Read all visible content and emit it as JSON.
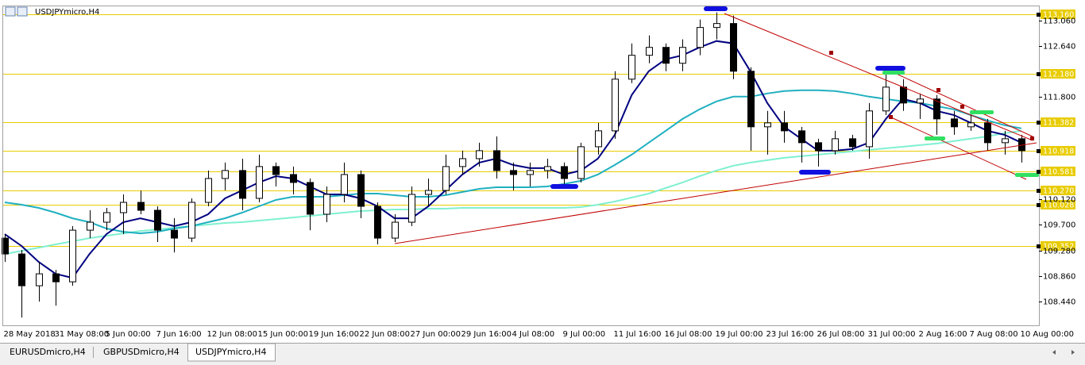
{
  "chart_data": {
    "type": "candlestick",
    "title": "USDJPYmicro,H4",
    "categories": [
      "28 May 2018",
      null,
      null,
      "31 May 08:00",
      null,
      null,
      "5 Jun 00:00",
      null,
      null,
      "7 Jun 16:00",
      null,
      null,
      "12 Jun 08:00",
      null,
      null,
      "15 Jun 00:00",
      null,
      null,
      "19 Jun 16:00",
      null,
      null,
      "22 Jun 08:00",
      null,
      null,
      "27 Jun 00:00",
      null,
      null,
      "29 Jun 16:00",
      null,
      null,
      "4 Jul 08:00",
      null,
      null,
      "9 Jul 00:00",
      null,
      null,
      "11 Jul 16:00",
      null,
      null,
      "16 Jul 08:00",
      null,
      null,
      "19 Jul 00:00",
      null,
      null,
      "23 Jul 16:00",
      null,
      null,
      "26 Jul 08:00",
      null,
      null,
      "31 Jul 00:00",
      null,
      null,
      "2 Aug 16:00",
      null,
      null,
      "7 Aug 08:00",
      null,
      null,
      "10 Aug 00:00"
    ],
    "open": [
      109.483,
      109.222,
      108.7,
      108.896,
      108.765,
      109.613,
      109.744,
      109.901,
      110.07,
      109.94,
      109.613,
      109.483,
      110.07,
      110.462,
      110.593,
      110.136,
      110.658,
      110.527,
      110.397,
      109.875,
      110.201,
      110.527,
      110.005,
      109.483,
      109.744,
      110.201,
      110.266,
      110.658,
      110.788,
      110.919,
      110.593,
      110.527,
      110.593,
      110.658,
      110.462,
      110.984,
      111.245,
      112.094,
      112.486,
      112.616,
      112.355,
      112.616,
      112.943,
      113.008,
      112.224,
      111.311,
      111.376,
      111.245,
      111.05,
      110.919,
      111.115,
      110.984,
      111.572,
      111.963,
      111.702,
      111.768,
      111.441,
      111.311,
      111.376,
      111.05,
      111.115
    ],
    "high": [
      109.548,
      109.287,
      109.091,
      108.961,
      109.679,
      109.94,
      109.979,
      110.201,
      110.266,
      110.005,
      109.809,
      110.136,
      110.593,
      110.723,
      110.788,
      110.854,
      110.723,
      110.658,
      110.462,
      110.331,
      110.723,
      110.593,
      110.07,
      109.875,
      110.331,
      110.462,
      110.854,
      110.919,
      111.05,
      111.154,
      110.723,
      110.723,
      110.788,
      110.723,
      111.05,
      111.376,
      112.224,
      112.681,
      112.812,
      112.681,
      112.747,
      113.073,
      113.191,
      113.138,
      112.29,
      111.572,
      111.572,
      111.311,
      111.115,
      111.245,
      111.18,
      111.702,
      112.198,
      112.094,
      111.859,
      111.833,
      111.572,
      111.506,
      111.441,
      111.245,
      111.18
    ],
    "low": [
      109.091,
      108.177,
      108.439,
      108.373,
      108.7,
      109.483,
      109.613,
      109.548,
      109.875,
      109.418,
      109.248,
      109.418,
      110.005,
      110.266,
      109.94,
      110.07,
      110.331,
      110.201,
      109.613,
      109.744,
      110.07,
      109.809,
      109.379,
      109.418,
      109.679,
      110.005,
      110.201,
      110.527,
      110.658,
      110.462,
      110.266,
      110.331,
      110.462,
      110.371,
      110.397,
      110.854,
      111.115,
      112.029,
      112.355,
      112.224,
      112.224,
      112.486,
      112.747,
      112.094,
      110.919,
      110.854,
      111.05,
      110.723,
      110.658,
      110.854,
      110.919,
      110.788,
      111.506,
      111.572,
      111.441,
      111.18,
      111.18,
      111.245,
      110.919,
      110.854,
      110.723
    ],
    "close": [
      109.222,
      108.7,
      108.896,
      108.765,
      109.613,
      109.744,
      109.901,
      110.07,
      109.94,
      109.613,
      109.483,
      110.07,
      110.462,
      110.593,
      110.136,
      110.658,
      110.527,
      110.397,
      109.875,
      110.201,
      110.527,
      110.005,
      109.483,
      109.744,
      110.201,
      110.266,
      110.658,
      110.788,
      110.919,
      110.593,
      110.527,
      110.593,
      110.658,
      110.462,
      110.984,
      111.245,
      112.094,
      112.486,
      112.616,
      112.355,
      112.616,
      112.943,
      113.008,
      112.224,
      111.311,
      111.376,
      111.245,
      111.05,
      110.919,
      111.115,
      110.984,
      111.572,
      111.963,
      111.702,
      111.768,
      111.441,
      111.311,
      111.376,
      111.05,
      111.115,
      110.919
    ],
    "up_color": "#ffffff",
    "down_color": "#000000",
    "moving_averages": [
      {
        "color": "#80f0d0",
        "values": [
          109.222,
          109.274,
          109.326,
          109.379,
          109.431,
          109.483,
          109.522,
          109.561,
          109.6,
          109.626,
          109.653,
          109.679,
          109.705,
          109.731,
          109.744,
          109.77,
          109.796,
          109.822,
          109.848,
          109.875,
          109.901,
          109.927,
          109.94,
          109.953,
          109.953,
          109.966,
          109.966,
          109.979,
          109.979,
          109.979,
          109.979,
          109.979,
          109.979,
          109.979,
          109.992,
          110.031,
          110.083,
          110.149,
          110.214,
          110.305,
          110.397,
          110.501,
          110.593,
          110.671,
          110.723,
          110.762,
          110.801,
          110.828,
          110.854,
          110.88,
          110.906,
          110.932,
          110.958,
          110.984,
          111.01,
          111.036,
          111.075,
          111.115,
          111.154,
          111.206,
          111.245
        ]
      },
      {
        "color": "#20b0c0",
        "values": [
          110.07,
          110.031,
          109.979,
          109.901,
          109.809,
          109.744,
          109.64,
          109.587,
          109.561,
          109.587,
          109.64,
          109.679,
          109.744,
          109.809,
          109.901,
          110.005,
          110.11,
          110.162,
          110.162,
          110.162,
          110.188,
          110.214,
          110.214,
          110.188,
          110.162,
          110.162,
          110.188,
          110.24,
          110.292,
          110.318,
          110.318,
          110.318,
          110.331,
          110.371,
          110.423,
          110.527,
          110.684,
          110.854,
          111.05,
          111.245,
          111.441,
          111.598,
          111.728,
          111.807,
          111.807,
          111.859,
          111.898,
          111.911,
          111.911,
          111.898,
          111.859,
          111.807,
          111.768,
          111.728,
          111.702,
          111.65,
          111.598,
          111.506,
          111.415,
          111.337,
          111.285
        ]
      },
      {
        "color": "#000080",
        "values": [
          109.548,
          109.352,
          109.091,
          108.896,
          108.83,
          109.222,
          109.548,
          109.744,
          109.809,
          109.744,
          109.679,
          109.744,
          109.875,
          110.136,
          110.266,
          110.397,
          110.501,
          110.462,
          110.331,
          110.201,
          110.201,
          110.136,
          110.005,
          109.809,
          109.809,
          110.005,
          110.266,
          110.527,
          110.723,
          110.788,
          110.684,
          110.632,
          110.632,
          110.527,
          110.593,
          110.788,
          111.18,
          111.833,
          112.224,
          112.42,
          112.486,
          112.616,
          112.721,
          112.681,
          112.224,
          111.702,
          111.311,
          111.115,
          110.919,
          110.919,
          110.945,
          111.05,
          111.441,
          111.768,
          111.702,
          111.572,
          111.506,
          111.376,
          111.245,
          111.18,
          111.05
        ]
      }
    ],
    "ylim": [
      108.05,
      113.29
    ],
    "yticks": [
      {
        "value": 113.06,
        "label": "113.060"
      },
      {
        "value": 112.64,
        "label": "112.640"
      },
      {
        "value": 111.8,
        "label": "111.800"
      },
      {
        "value": 110.12,
        "label": "110.120"
      },
      {
        "value": 109.7,
        "label": "109.700"
      },
      {
        "value": 109.28,
        "label": "109.280"
      },
      {
        "value": 108.86,
        "label": "108.860"
      },
      {
        "value": 108.44,
        "label": "108.440"
      }
    ],
    "levels": [
      {
        "value": 113.16,
        "label": "113.160"
      },
      {
        "value": 112.18,
        "label": "112.180"
      },
      {
        "value": 111.382,
        "label": "111.382"
      },
      {
        "value": 110.918,
        "label": "110.918"
      },
      {
        "value": 110.581,
        "label": "110.581"
      },
      {
        "value": 110.27,
        "label": "110.270"
      },
      {
        "value": 110.028,
        "label": "110.028"
      },
      {
        "value": 109.352,
        "label": "109.352"
      }
    ],
    "level_color": "#e8cc00",
    "tabs": [
      "EURUSDmicro,H4",
      "GBPUSDmicro,H4",
      "USDJPYmicro,H4"
    ],
    "active_tab": 2
  }
}
